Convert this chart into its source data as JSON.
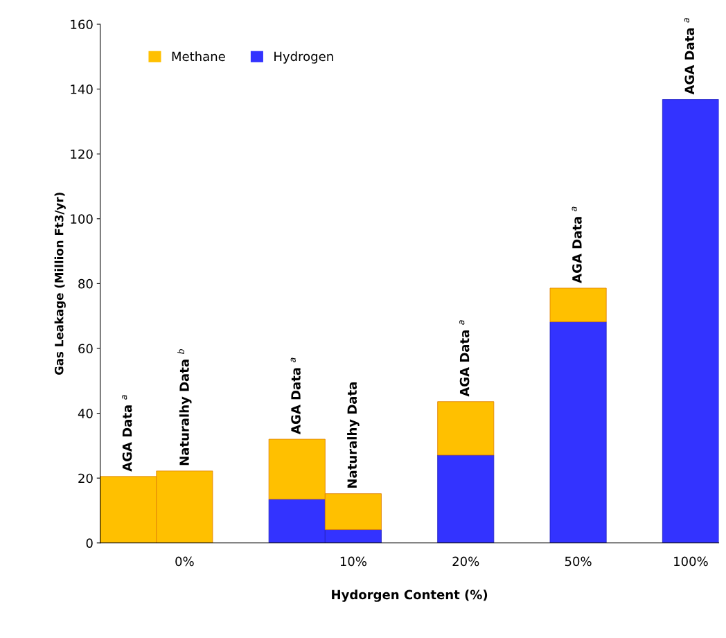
{
  "chart_data": {
    "type": "bar",
    "stacked": true,
    "xlabel": "Hydorgen Content (%)",
    "ylabel": "Gas Leakage (Million Ft3/yr)",
    "categories": [
      null,
      "0%",
      null,
      null,
      "10%",
      null,
      "20%",
      null,
      "50%",
      null,
      "100%"
    ],
    "ylim": [
      0,
      160
    ],
    "yticks": [
      0,
      20,
      40,
      60,
      80,
      100,
      120,
      140,
      160
    ],
    "series": [
      {
        "name": "Hydrogen",
        "color": "#3333ff",
        "values": [
          null,
          null,
          null,
          13.5,
          4.1,
          null,
          27.1,
          null,
          68.2,
          null,
          136.8
        ]
      },
      {
        "name": "Methane",
        "color": "#ffc000",
        "values": [
          20.5,
          22.2,
          null,
          18.5,
          11.1,
          null,
          16.5,
          null,
          10.4,
          null,
          null
        ]
      }
    ],
    "annotations": [
      {
        "text": "AGA Data $^{a}$",
        "y": 20.5
      },
      {
        "text": "Naturalhy Data $^{b}$",
        "y": 22.2
      },
      {
        "text": "AGA Data $^{a}$",
        "y": 32.0
      },
      {
        "text": "Naturalhy Data",
        "y": 15.2
      },
      {
        "text": "AGA Data $^{a}$",
        "y": 43.6
      },
      {
        "text": "AGA Data $^{a}$",
        "y": 78.6
      },
      {
        "text": "AGA Data $^{a}$",
        "y": 136.8
      }
    ],
    "legend": "top left",
    "grid": false
  }
}
